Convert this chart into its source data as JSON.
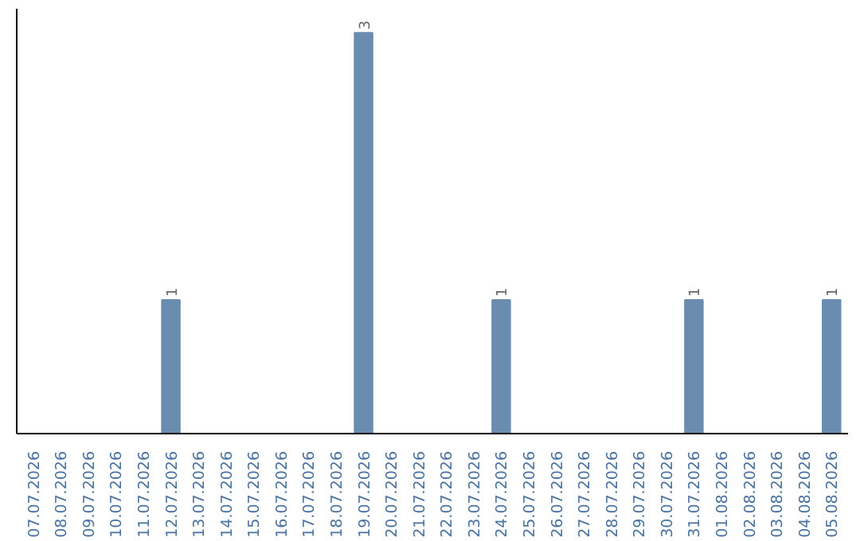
{
  "chart_data": {
    "type": "bar",
    "categories": [
      "07.07.2026",
      "08.07.2026",
      "09.07.2026",
      "10.07.2026",
      "11.07.2026",
      "12.07.2026",
      "13.07.2026",
      "14.07.2026",
      "15.07.2026",
      "16.07.2026",
      "17.07.2026",
      "18.07.2026",
      "19.07.2026",
      "20.07.2026",
      "21.07.2026",
      "22.07.2026",
      "23.07.2026",
      "24.07.2026",
      "25.07.2026",
      "26.07.2026",
      "27.07.2026",
      "28.07.2026",
      "29.07.2026",
      "30.07.2026",
      "31.07.2026",
      "01.08.2026",
      "02.08.2026",
      "03.08.2026",
      "04.08.2026",
      "05.08.2026"
    ],
    "values": [
      0,
      0,
      0,
      0,
      0,
      1,
      0,
      0,
      0,
      0,
      0,
      0,
      3,
      0,
      0,
      0,
      0,
      1,
      0,
      0,
      0,
      0,
      0,
      0,
      1,
      0,
      0,
      0,
      0,
      1
    ],
    "value_labels": [
      null,
      null,
      null,
      null,
      null,
      "1",
      null,
      null,
      null,
      null,
      null,
      null,
      "3",
      null,
      null,
      null,
      null,
      "1",
      null,
      null,
      null,
      null,
      null,
      null,
      "1",
      null,
      null,
      null,
      null,
      "1"
    ],
    "color": "#6a8caf",
    "grid": false
  }
}
